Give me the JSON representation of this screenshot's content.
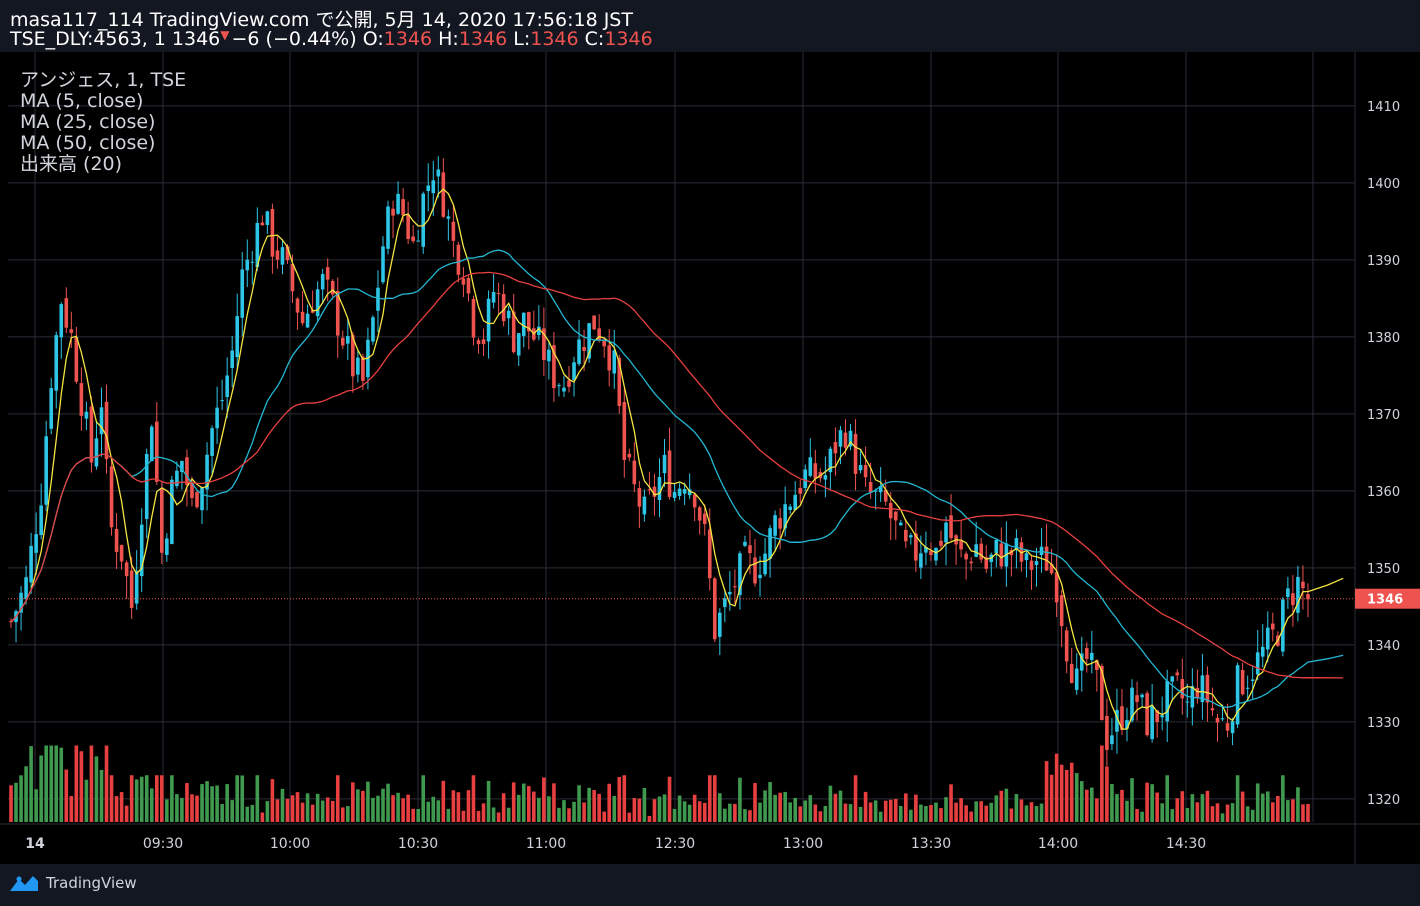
{
  "header": {
    "line1": "masa117_114 TradingView.com で公開, 5月 14, 2020 17:56:18 JST",
    "symbol_prefix": "TSE_DLY:4563, 1 1346",
    "change": "−6 (−0.44%)",
    "o_label": "O:",
    "o_value": "1346",
    "h_label": "H:",
    "h_value": "1346",
    "l_label": "L:",
    "l_value": "1346",
    "c_label": "C:",
    "c_value": "1346"
  },
  "legend": [
    "アンジェス, 1, TSE",
    "MA (5, close)",
    "MA (25, close)",
    "MA (50, close)",
    "出来高 (20)"
  ],
  "footer": {
    "brand": "TradingView",
    "icon": "tradingview-logo-icon"
  },
  "colors": {
    "background": "#000000",
    "up": "#26a69a",
    "up_candle": "#2ec6e6",
    "down": "#ef5350",
    "ma5": "#f4e542",
    "ma25": "#23b7d3",
    "ma50": "#e84040",
    "grid": "#2a2e39",
    "vol_up": "#3f9a4f",
    "vol_down": "#e84040",
    "last_price": "#ef5350"
  },
  "chart_data": {
    "type": "candlestick",
    "symbol": "TSE_DLY:4563",
    "interval": "1",
    "ylim": [
      1315,
      1415
    ],
    "y_ticks": [
      1320,
      1330,
      1340,
      1350,
      1360,
      1370,
      1380,
      1390,
      1400,
      1410
    ],
    "x_ticks": [
      "14",
      "09:30",
      "10:00",
      "10:30",
      "11:00",
      "12:30",
      "13:00",
      "13:30",
      "14:00",
      "14:30"
    ],
    "last_price": 1346,
    "price_path": [
      [
        0,
        1343
      ],
      [
        3,
        1348
      ],
      [
        6,
        1360
      ],
      [
        8,
        1375
      ],
      [
        10,
        1385
      ],
      [
        12,
        1380
      ],
      [
        14,
        1372
      ],
      [
        16,
        1364
      ],
      [
        18,
        1372
      ],
      [
        19,
        1362
      ],
      [
        20,
        1355
      ],
      [
        22,
        1352
      ],
      [
        24,
        1345
      ],
      [
        26,
        1358
      ],
      [
        28,
        1370
      ],
      [
        30,
        1352
      ],
      [
        32,
        1360
      ],
      [
        34,
        1364
      ],
      [
        36,
        1358
      ],
      [
        38,
        1362
      ],
      [
        40,
        1368
      ],
      [
        42,
        1372
      ],
      [
        44,
        1378
      ],
      [
        46,
        1388
      ],
      [
        48,
        1392
      ],
      [
        50,
        1396
      ],
      [
        52,
        1392
      ],
      [
        54,
        1390
      ],
      [
        56,
        1386
      ],
      [
        58,
        1382
      ],
      [
        60,
        1385
      ],
      [
        62,
        1387
      ],
      [
        64,
        1384
      ],
      [
        66,
        1380
      ],
      [
        68,
        1376
      ],
      [
        70,
        1374
      ],
      [
        72,
        1382
      ],
      [
        74,
        1392
      ],
      [
        76,
        1398
      ],
      [
        78,
        1396
      ],
      [
        80,
        1392
      ],
      [
        82,
        1398
      ],
      [
        84,
        1402
      ],
      [
        86,
        1398
      ],
      [
        88,
        1392
      ],
      [
        90,
        1389
      ],
      [
        92,
        1382
      ],
      [
        94,
        1380
      ],
      [
        96,
        1386
      ],
      [
        98,
        1384
      ],
      [
        100,
        1380
      ],
      [
        102,
        1382
      ],
      [
        104,
        1380
      ],
      [
        106,
        1378
      ],
      [
        108,
        1375
      ],
      [
        110,
        1374
      ],
      [
        112,
        1378
      ],
      [
        114,
        1380
      ],
      [
        116,
        1382
      ],
      [
        118,
        1380
      ],
      [
        120,
        1376
      ],
      [
        122,
        1364
      ],
      [
        124,
        1360
      ],
      [
        126,
        1357
      ],
      [
        128,
        1360
      ],
      [
        130,
        1363
      ],
      [
        132,
        1360
      ],
      [
        134,
        1362
      ],
      [
        136,
        1360
      ],
      [
        138,
        1354
      ],
      [
        140,
        1342
      ],
      [
        142,
        1345
      ],
      [
        144,
        1348
      ],
      [
        146,
        1351
      ],
      [
        148,
        1350
      ],
      [
        150,
        1352
      ],
      [
        152,
        1356
      ],
      [
        154,
        1358
      ],
      [
        156,
        1360
      ],
      [
        158,
        1362
      ],
      [
        160,
        1362
      ],
      [
        162,
        1362
      ],
      [
        164,
        1366
      ],
      [
        166,
        1368
      ],
      [
        168,
        1364
      ],
      [
        170,
        1360
      ],
      [
        172,
        1359
      ],
      [
        174,
        1358
      ],
      [
        176,
        1355
      ],
      [
        178,
        1352
      ],
      [
        180,
        1352
      ],
      [
        182,
        1354
      ],
      [
        184,
        1352
      ],
      [
        186,
        1356
      ],
      [
        188,
        1352
      ],
      [
        190,
        1351
      ],
      [
        192,
        1353
      ],
      [
        194,
        1350
      ],
      [
        196,
        1352
      ],
      [
        198,
        1352
      ],
      [
        200,
        1352
      ],
      [
        202,
        1350
      ],
      [
        204,
        1351
      ],
      [
        206,
        1351
      ],
      [
        208,
        1348
      ],
      [
        210,
        1340
      ],
      [
        212,
        1335
      ],
      [
        214,
        1338
      ],
      [
        216,
        1335
      ],
      [
        218,
        1328
      ],
      [
        220,
        1330
      ],
      [
        222,
        1332
      ],
      [
        224,
        1333
      ],
      [
        226,
        1330
      ],
      [
        228,
        1331
      ],
      [
        230,
        1333
      ],
      [
        232,
        1334
      ],
      [
        234,
        1332
      ],
      [
        236,
        1335
      ],
      [
        238,
        1333
      ],
      [
        240,
        1330
      ],
      [
        242,
        1330
      ],
      [
        244,
        1335
      ],
      [
        246,
        1336
      ],
      [
        248,
        1338
      ],
      [
        250,
        1340
      ],
      [
        252,
        1342
      ],
      [
        254,
        1346
      ],
      [
        256,
        1348
      ],
      [
        258,
        1346
      ]
    ],
    "series": [
      {
        "name": "MA (5, close)"
      },
      {
        "name": "MA (25, close)"
      },
      {
        "name": "MA (50, close)"
      },
      {
        "name": "出来高 (20)"
      }
    ]
  }
}
